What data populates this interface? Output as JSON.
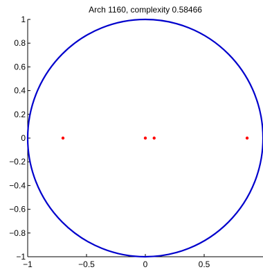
{
  "chart_data": {
    "type": "scatter",
    "title": "Arch 1160, complexity 0.58466",
    "xlabel": "",
    "ylabel": "",
    "xlim": [
      -1,
      1
    ],
    "ylim": [
      -1,
      1
    ],
    "grid": false,
    "x_ticks": [
      -1,
      -0.5,
      0,
      0.5
    ],
    "x_tick_labels": [
      "−1",
      "−0.5",
      "0",
      "0.5"
    ],
    "y_ticks": [
      -1,
      -0.8,
      -0.6,
      -0.4,
      -0.2,
      0,
      0.2,
      0.4,
      0.6,
      0.8,
      1
    ],
    "y_tick_labels": [
      "−1",
      "−0.8",
      "−0.6",
      "−0.4",
      "−0.2",
      "0",
      "0.2",
      "0.4",
      "0.6",
      "0.8",
      "1"
    ],
    "circle": {
      "center": [
        0,
        0
      ],
      "radius": 1,
      "color": "#0000cc"
    },
    "series": [
      {
        "color": "#ff0000",
        "points": [
          [
            -0.7,
            0
          ],
          [
            0,
            0
          ],
          [
            0.075,
            0
          ],
          [
            0.865,
            0
          ]
        ]
      }
    ]
  }
}
